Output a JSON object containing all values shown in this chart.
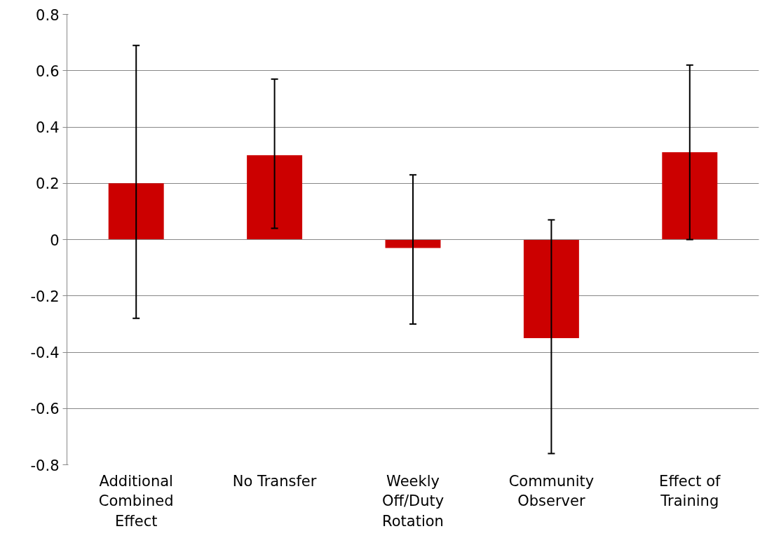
{
  "chart_data": {
    "type": "bar",
    "categories": [
      "Additional\nCombined\nEffect",
      "No Transfer",
      "Weekly\nOff/Duty\nRotation",
      "Community\nObserver",
      "Effect of\nTraining"
    ],
    "values": [
      0.2,
      0.3,
      -0.03,
      -0.35,
      0.31
    ],
    "errors": [
      [
        -0.28,
        0.69
      ],
      [
        0.04,
        0.57
      ],
      [
        -0.3,
        0.23
      ],
      [
        -0.76,
        0.07
      ],
      [
        0.0,
        0.62
      ]
    ],
    "color": "#cc0000",
    "ylim": [
      -0.8,
      0.8
    ],
    "yticks": [
      -0.8,
      -0.6,
      -0.4,
      -0.2,
      0,
      0.2,
      0.4,
      0.6,
      0.8
    ],
    "grid": "y"
  }
}
